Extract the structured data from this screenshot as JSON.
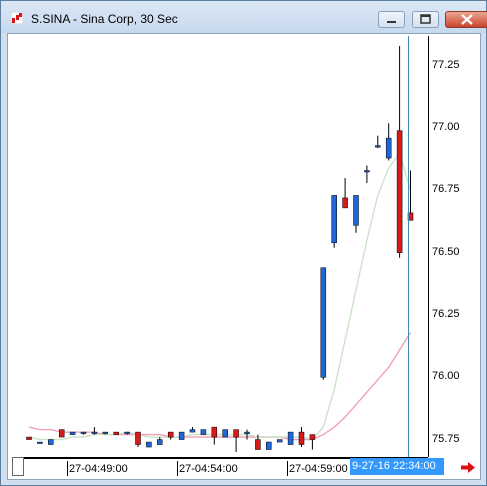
{
  "window": {
    "title": "S.SINA - Sina Corp, 30 Sec"
  },
  "icons": {
    "app": "chart-app-icon",
    "minimize": "minimize-icon",
    "maximize": "maximize-icon",
    "close": "close-icon",
    "scroll_right": "red-right-arrow-icon"
  },
  "colors": {
    "up_candle": "#1f66d6",
    "down_candle": "#d91a1a",
    "ma_fast": "#c8e2c4",
    "ma_slow": "#f29ab8",
    "cursor_line": "#3f8db8",
    "time_highlight": "#3399ff"
  },
  "x_axis": {
    "labels": [
      "27-04:49:00",
      "27-04:54:00",
      "27-04:59:00"
    ],
    "current_time": "9-27-16 22:34:00"
  },
  "chart_data": {
    "type": "candlestick",
    "y_axis_labels": [
      "77.25",
      "77.00",
      "76.75",
      "76.50",
      "76.25",
      "76.00",
      "75.75"
    ],
    "ylim": [
      75.68,
      77.37
    ],
    "bar_interval": "30 Sec",
    "candles": [
      {
        "o": 75.76,
        "h": 75.76,
        "l": 75.75,
        "c": 75.75
      },
      {
        "o": 75.74,
        "h": 75.74,
        "l": 75.74,
        "c": 75.74
      },
      {
        "o": 75.73,
        "h": 75.75,
        "l": 75.73,
        "c": 75.75
      },
      {
        "o": 75.79,
        "h": 75.79,
        "l": 75.76,
        "c": 75.76
      },
      {
        "o": 75.77,
        "h": 75.78,
        "l": 75.77,
        "c": 75.78
      },
      {
        "o": 75.78,
        "h": 75.78,
        "l": 75.77,
        "c": 75.78
      },
      {
        "o": 75.78,
        "h": 75.8,
        "l": 75.77,
        "c": 75.78
      },
      {
        "o": 75.78,
        "h": 75.78,
        "l": 75.77,
        "c": 75.78
      },
      {
        "o": 75.78,
        "h": 75.78,
        "l": 75.77,
        "c": 75.77
      },
      {
        "o": 75.78,
        "h": 75.78,
        "l": 75.77,
        "c": 75.78
      },
      {
        "o": 75.78,
        "h": 75.78,
        "l": 75.72,
        "c": 75.73
      },
      {
        "o": 75.72,
        "h": 75.74,
        "l": 75.72,
        "c": 75.74
      },
      {
        "o": 75.73,
        "h": 75.76,
        "l": 75.73,
        "c": 75.75
      },
      {
        "o": 75.78,
        "h": 75.78,
        "l": 75.75,
        "c": 75.76
      },
      {
        "o": 75.75,
        "h": 75.78,
        "l": 75.75,
        "c": 75.78
      },
      {
        "o": 75.78,
        "h": 75.8,
        "l": 75.78,
        "c": 75.79
      },
      {
        "o": 75.77,
        "h": 75.79,
        "l": 75.77,
        "c": 75.79
      },
      {
        "o": 75.8,
        "h": 75.8,
        "l": 75.73,
        "c": 75.76
      },
      {
        "o": 75.76,
        "h": 75.79,
        "l": 75.76,
        "c": 75.79
      },
      {
        "o": 75.79,
        "h": 75.79,
        "l": 75.7,
        "c": 75.76
      },
      {
        "o": 75.78,
        "h": 75.79,
        "l": 75.75,
        "c": 75.78
      },
      {
        "o": 75.75,
        "h": 75.77,
        "l": 75.71,
        "c": 75.71
      },
      {
        "o": 75.71,
        "h": 75.74,
        "l": 75.71,
        "c": 75.74
      },
      {
        "o": 75.74,
        "h": 75.75,
        "l": 75.74,
        "c": 75.75
      },
      {
        "o": 75.73,
        "h": 75.78,
        "l": 75.73,
        "c": 75.78
      },
      {
        "o": 75.78,
        "h": 75.8,
        "l": 75.72,
        "c": 75.73
      },
      {
        "o": 75.77,
        "h": 75.77,
        "l": 75.71,
        "c": 75.75
      },
      {
        "o": 76.0,
        "h": 76.44,
        "l": 75.99,
        "c": 76.44
      },
      {
        "o": 76.54,
        "h": 76.73,
        "l": 76.52,
        "c": 76.73
      },
      {
        "o": 76.72,
        "h": 76.8,
        "l": 76.68,
        "c": 76.68
      },
      {
        "o": 76.61,
        "h": 76.73,
        "l": 76.58,
        "c": 76.73
      },
      {
        "o": 76.83,
        "h": 76.85,
        "l": 76.78,
        "c": 76.83
      },
      {
        "o": 76.93,
        "h": 76.97,
        "l": 76.92,
        "c": 76.93
      },
      {
        "o": 76.88,
        "h": 77.02,
        "l": 76.87,
        "c": 76.96
      },
      {
        "o": 76.99,
        "h": 77.33,
        "l": 76.48,
        "c": 76.5
      },
      {
        "o": 76.66,
        "h": 76.83,
        "l": 76.63,
        "c": 76.63
      }
    ],
    "ma_fast": [
      75.76,
      75.75,
      75.75,
      75.75,
      75.76,
      75.76,
      75.77,
      75.77,
      75.77,
      75.78,
      75.77,
      75.76,
      75.76,
      75.76,
      75.76,
      75.77,
      75.77,
      75.77,
      75.77,
      75.77,
      75.77,
      75.76,
      75.76,
      75.76,
      75.76,
      75.76,
      75.75,
      75.8,
      75.95,
      76.15,
      76.35,
      76.55,
      76.73,
      76.84,
      76.9,
      76.75
    ],
    "ma_slow": [
      75.8,
      75.79,
      75.79,
      75.78,
      75.78,
      75.78,
      75.78,
      75.77,
      75.77,
      75.77,
      75.77,
      75.77,
      75.77,
      75.76,
      75.76,
      75.76,
      75.76,
      75.76,
      75.76,
      75.76,
      75.76,
      75.76,
      75.76,
      75.76,
      75.75,
      75.75,
      75.75,
      75.77,
      75.8,
      75.84,
      75.89,
      75.94,
      75.99,
      76.04,
      76.11,
      76.18
    ]
  }
}
